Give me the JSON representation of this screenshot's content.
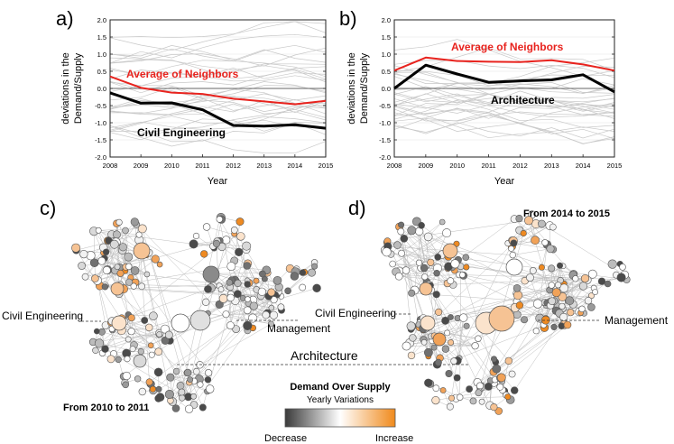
{
  "chart_data": [
    {
      "type": "line",
      "panel": "a)",
      "x": [
        2008,
        2009,
        2010,
        2011,
        2012,
        2013,
        2014,
        2015
      ],
      "xlabel": "Year",
      "ylabel": "deviations in the Demand/Supply",
      "ylabel_lines": [
        "deviations in the",
        "Demand/Supply"
      ],
      "ylim": [
        -2.0,
        2.0
      ],
      "yticks": [
        "2.0",
        "1.5",
        "1.0",
        "0.5",
        "0.0",
        "-0.5",
        "-1.0",
        "-1.5",
        "-2.0"
      ],
      "xticks": [
        "2008",
        "2009",
        "2010",
        "2011",
        "2012",
        "2013",
        "2014",
        "2015"
      ],
      "series": [
        {
          "name": "Average of Neighbors",
          "color": "#e8231e",
          "values": [
            0.35,
            0.02,
            -0.12,
            -0.16,
            -0.3,
            -0.38,
            -0.46,
            -0.36
          ]
        },
        {
          "name": "Civil Engineering",
          "color": "#000000",
          "values": [
            -0.13,
            -0.43,
            -0.42,
            -0.62,
            -1.08,
            -1.1,
            -1.06,
            -1.16
          ]
        }
      ]
    },
    {
      "type": "line",
      "panel": "b)",
      "x": [
        2008,
        2009,
        2010,
        2011,
        2012,
        2013,
        2014,
        2015
      ],
      "xlabel": "Year",
      "ylabel": "deviations in the Demand/Supply",
      "ylabel_lines": [
        "deviations in the",
        "Demand/Supply"
      ],
      "ylim": [
        -2.0,
        2.0
      ],
      "yticks": [
        "2.0",
        "1.5",
        "1.0",
        "0.5",
        "0.0",
        "-0.5",
        "-1.0",
        "-1.5",
        "-2.0"
      ],
      "xticks": [
        "2008",
        "2009",
        "2010",
        "2011",
        "2012",
        "2013",
        "2014",
        "2015"
      ],
      "series": [
        {
          "name": "Average of Neighbors",
          "color": "#e8231e",
          "values": [
            0.52,
            0.9,
            0.8,
            0.78,
            0.77,
            0.82,
            0.7,
            0.52
          ]
        },
        {
          "name": "Architecture",
          "color": "#000000",
          "values": [
            0.0,
            0.68,
            0.42,
            0.18,
            0.22,
            0.25,
            0.4,
            -0.1
          ]
        }
      ]
    }
  ],
  "panel_c": {
    "label": "c)",
    "period": "From 2010 to 2011",
    "node_labels": [
      "Civil Engineering",
      "Management",
      "Architecture"
    ]
  },
  "panel_d": {
    "label": "d)",
    "period": "From 2014 to 2015",
    "node_labels": [
      "Civil Engineering",
      "Management"
    ]
  },
  "colorbar": {
    "title": "Demand Over Supply",
    "subtitle": "Yearly Variations",
    "low_label": "Decrease",
    "high_label": "Increase",
    "colors": [
      "#3a3a3a",
      "#ffffff",
      "#f08a1c"
    ]
  }
}
